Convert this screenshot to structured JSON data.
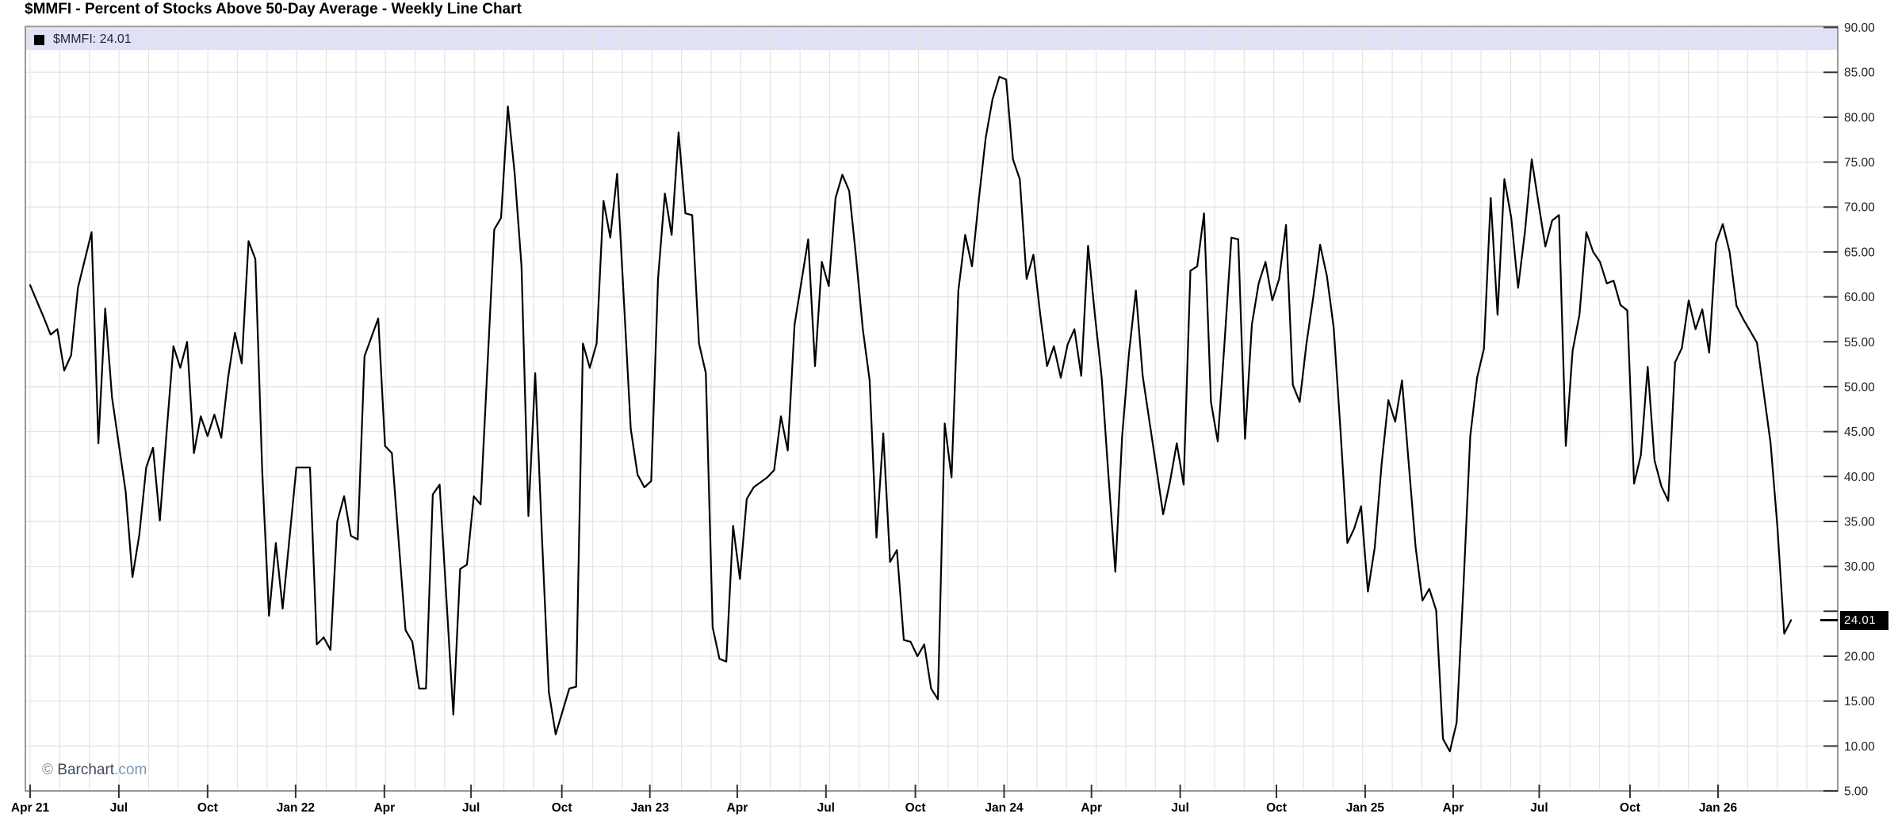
{
  "header": {
    "title": "$MMFI - Percent of Stocks Above 50-Day Average - Weekly Line Chart"
  },
  "legend": {
    "swatch_icon": "black-square-icon",
    "text": "$MMFI: 24.01",
    "symbol": "$MMFI",
    "value": "24.01"
  },
  "watermark": {
    "copyright": "© ",
    "name": "Barchart",
    "domain": ".com"
  },
  "y_axis": {
    "badge_label": "24.01",
    "hidden_tick_label": "25.00"
  },
  "colors": {
    "line": "#000000",
    "grid": "#e4e4e4",
    "border": "#999999",
    "tick": "#333333",
    "legend_band": "#e1e1f6",
    "badge_bg": "#000000",
    "badge_text": "#ffffff",
    "axis_label": "#222222",
    "x_label": "#000000"
  },
  "chart_data": {
    "type": "line",
    "title": "$MMFI - Percent of Stocks Above 50-Day Average - Weekly Line Chart",
    "series_name": "$MMFI",
    "frequency": "weekly",
    "date_range": "Apr 2021 - Mar 2026",
    "last_value": 24.01,
    "ylim": [
      5,
      90
    ],
    "grid": "horizontal every 5 units, vertical monthly",
    "legend_position": "top-left band",
    "y_ticks_labeled": [
      [
        90,
        "90.00"
      ],
      [
        85,
        "85.00"
      ],
      [
        80,
        "80.00"
      ],
      [
        75,
        "75.00"
      ],
      [
        70,
        "70.00"
      ],
      [
        65,
        "65.00"
      ],
      [
        60,
        "60.00"
      ],
      [
        55,
        "55.00"
      ],
      [
        50,
        "50.00"
      ],
      [
        45,
        "45.00"
      ],
      [
        40,
        "40.00"
      ],
      [
        35,
        "35.00"
      ],
      [
        30,
        "30.00"
      ],
      [
        20,
        "20.00"
      ],
      [
        15,
        "15.00"
      ],
      [
        10,
        "10.00"
      ],
      [
        5,
        "5.00"
      ]
    ],
    "y_ticks_all": [
      90,
      85,
      80,
      75,
      70,
      65,
      60,
      55,
      50,
      45,
      40,
      35,
      30,
      25,
      20,
      15,
      10,
      5
    ],
    "x_ticks": [
      {
        "label": "Apr 21",
        "week": 0
      },
      {
        "label": "Jul",
        "week": 13
      },
      {
        "label": "Oct",
        "week": 26
      },
      {
        "label": "Jan 22",
        "week": 38.9
      },
      {
        "label": "Apr",
        "week": 51.9
      },
      {
        "label": "Jul",
        "week": 64.6
      },
      {
        "label": "Oct",
        "week": 77.9
      },
      {
        "label": "Jan 23",
        "week": 90.8
      },
      {
        "label": "Apr",
        "week": 103.6
      },
      {
        "label": "Jul",
        "week": 116.6
      },
      {
        "label": "Oct",
        "week": 129.7
      },
      {
        "label": "Jan 24",
        "week": 142.7
      },
      {
        "label": "Apr",
        "week": 155.5
      },
      {
        "label": "Jul",
        "week": 168.5
      },
      {
        "label": "Oct",
        "week": 182.6
      },
      {
        "label": "Jan 25",
        "week": 195.6
      },
      {
        "label": "Apr",
        "week": 208.5
      },
      {
        "label": "Jul",
        "week": 221.1
      },
      {
        "label": "Oct",
        "week": 234.4
      },
      {
        "label": "Jan 26",
        "week": 247.3
      }
    ],
    "x_unit": "weeks since first data point (Apr 2021)",
    "points": [
      [
        0,
        61.3
      ],
      [
        2,
        57.7
      ],
      [
        3,
        55.8
      ],
      [
        4,
        56.4
      ],
      [
        5,
        51.8
      ],
      [
        6,
        53.5
      ],
      [
        7,
        61.0
      ],
      [
        9,
        67.2
      ],
      [
        10,
        43.7
      ],
      [
        11,
        58.7
      ],
      [
        12,
        48.8
      ],
      [
        14,
        38.3
      ],
      [
        15,
        28.8
      ],
      [
        16,
        33.5
      ],
      [
        17,
        41.0
      ],
      [
        18,
        43.2
      ],
      [
        19,
        35.1
      ],
      [
        20,
        45.0
      ],
      [
        21,
        54.5
      ],
      [
        22,
        52.1
      ],
      [
        23,
        55.0
      ],
      [
        24,
        42.6
      ],
      [
        25,
        46.7
      ],
      [
        26,
        44.5
      ],
      [
        27,
        46.9
      ],
      [
        28,
        44.3
      ],
      [
        29,
        51.0
      ],
      [
        30,
        56.0
      ],
      [
        31,
        52.6
      ],
      [
        32,
        66.2
      ],
      [
        33,
        64.2
      ],
      [
        34,
        40.7
      ],
      [
        35,
        24.5
      ],
      [
        36,
        32.6
      ],
      [
        37,
        25.3
      ],
      [
        39,
        41.0
      ],
      [
        41,
        41.0
      ],
      [
        42,
        21.3
      ],
      [
        43,
        22.1
      ],
      [
        44,
        20.7
      ],
      [
        45,
        35.0
      ],
      [
        46,
        37.8
      ],
      [
        47,
        33.4
      ],
      [
        48,
        33.0
      ],
      [
        49,
        53.4
      ],
      [
        51,
        57.6
      ],
      [
        52,
        43.4
      ],
      [
        53,
        42.6
      ],
      [
        55,
        22.9
      ],
      [
        56,
        21.6
      ],
      [
        57,
        16.4
      ],
      [
        58,
        16.4
      ],
      [
        59,
        38.0
      ],
      [
        60,
        39.1
      ],
      [
        62,
        13.5
      ],
      [
        63,
        29.7
      ],
      [
        64,
        30.2
      ],
      [
        65,
        37.8
      ],
      [
        66,
        36.9
      ],
      [
        68,
        67.5
      ],
      [
        69,
        68.8
      ],
      [
        70,
        81.2
      ],
      [
        71,
        73.7
      ],
      [
        72,
        63.4
      ],
      [
        73,
        35.6
      ],
      [
        74,
        51.5
      ],
      [
        75,
        33.0
      ],
      [
        76,
        16.0
      ],
      [
        77,
        11.3
      ],
      [
        79,
        16.4
      ],
      [
        80,
        16.6
      ],
      [
        81,
        54.8
      ],
      [
        82,
        52.1
      ],
      [
        83,
        54.8
      ],
      [
        84,
        70.7
      ],
      [
        85,
        66.6
      ],
      [
        86,
        73.7
      ],
      [
        88,
        45.3
      ],
      [
        89,
        40.2
      ],
      [
        90,
        38.8
      ],
      [
        91,
        39.5
      ],
      [
        92,
        62.0
      ],
      [
        93,
        71.5
      ],
      [
        94,
        66.9
      ],
      [
        95,
        78.3
      ],
      [
        96,
        69.3
      ],
      [
        97,
        69.1
      ],
      [
        98,
        54.8
      ],
      [
        99,
        51.5
      ],
      [
        100,
        23.2
      ],
      [
        101,
        19.7
      ],
      [
        102,
        19.4
      ],
      [
        103,
        34.5
      ],
      [
        104,
        28.6
      ],
      [
        105,
        37.5
      ],
      [
        106,
        38.8
      ],
      [
        108,
        39.9
      ],
      [
        109,
        40.7
      ],
      [
        110,
        46.7
      ],
      [
        111,
        42.9
      ],
      [
        112,
        56.9
      ],
      [
        114,
        66.4
      ],
      [
        115,
        52.3
      ],
      [
        116,
        63.9
      ],
      [
        117,
        61.2
      ],
      [
        118,
        71.0
      ],
      [
        119,
        73.6
      ],
      [
        120,
        71.8
      ],
      [
        121,
        64.5
      ],
      [
        122,
        56.4
      ],
      [
        123,
        50.7
      ],
      [
        124,
        33.2
      ],
      [
        125,
        44.8
      ],
      [
        126,
        30.5
      ],
      [
        127,
        31.8
      ],
      [
        128,
        21.8
      ],
      [
        129,
        21.6
      ],
      [
        130,
        20.0
      ],
      [
        131,
        21.3
      ],
      [
        132,
        16.4
      ],
      [
        133,
        15.2
      ],
      [
        134,
        45.9
      ],
      [
        135,
        39.9
      ],
      [
        136,
        60.7
      ],
      [
        137,
        66.9
      ],
      [
        138,
        63.4
      ],
      [
        139,
        70.9
      ],
      [
        140,
        77.7
      ],
      [
        141,
        82.0
      ],
      [
        142,
        84.5
      ],
      [
        143,
        84.2
      ],
      [
        144,
        75.3
      ],
      [
        145,
        73.1
      ],
      [
        146,
        62.0
      ],
      [
        147,
        64.7
      ],
      [
        148,
        58.0
      ],
      [
        149,
        52.3
      ],
      [
        150,
        54.5
      ],
      [
        151,
        51.0
      ],
      [
        152,
        54.7
      ],
      [
        153,
        56.4
      ],
      [
        154,
        51.2
      ],
      [
        155,
        65.7
      ],
      [
        156,
        58.0
      ],
      [
        157,
        51.0
      ],
      [
        158,
        40.0
      ],
      [
        159,
        29.4
      ],
      [
        160,
        44.5
      ],
      [
        161,
        53.7
      ],
      [
        162,
        60.7
      ],
      [
        163,
        51.2
      ],
      [
        165,
        41.0
      ],
      [
        166,
        35.8
      ],
      [
        167,
        39.4
      ],
      [
        168,
        43.7
      ],
      [
        169,
        39.1
      ],
      [
        170,
        62.9
      ],
      [
        171,
        63.4
      ],
      [
        172,
        69.3
      ],
      [
        173,
        48.3
      ],
      [
        174,
        43.9
      ],
      [
        175,
        55.0
      ],
      [
        176,
        66.6
      ],
      [
        177,
        66.4
      ],
      [
        178,
        44.2
      ],
      [
        179,
        56.9
      ],
      [
        180,
        61.5
      ],
      [
        181,
        63.9
      ],
      [
        182,
        59.6
      ],
      [
        183,
        62.0
      ],
      [
        184,
        68.0
      ],
      [
        185,
        50.2
      ],
      [
        186,
        48.3
      ],
      [
        187,
        54.8
      ],
      [
        188,
        60.0
      ],
      [
        189,
        65.8
      ],
      [
        190,
        62.3
      ],
      [
        191,
        56.5
      ],
      [
        192,
        45.0
      ],
      [
        193,
        32.6
      ],
      [
        194,
        34.2
      ],
      [
        195,
        36.7
      ],
      [
        196,
        27.2
      ],
      [
        197,
        32.1
      ],
      [
        198,
        41.3
      ],
      [
        199,
        48.5
      ],
      [
        200,
        46.1
      ],
      [
        201,
        50.7
      ],
      [
        202,
        41.3
      ],
      [
        203,
        32.1
      ],
      [
        204,
        26.2
      ],
      [
        205,
        27.5
      ],
      [
        206,
        25.1
      ],
      [
        207,
        10.8
      ],
      [
        208,
        9.4
      ],
      [
        209,
        12.6
      ],
      [
        210,
        27.8
      ],
      [
        211,
        44.5
      ],
      [
        212,
        51.0
      ],
      [
        213,
        54.2
      ],
      [
        214,
        71.0
      ],
      [
        215,
        58.0
      ],
      [
        216,
        73.1
      ],
      [
        217,
        68.8
      ],
      [
        218,
        61.0
      ],
      [
        219,
        67.2
      ],
      [
        220,
        75.3
      ],
      [
        221,
        70.4
      ],
      [
        222,
        65.6
      ],
      [
        223,
        68.5
      ],
      [
        224,
        69.1
      ],
      [
        225,
        43.4
      ],
      [
        226,
        54.0
      ],
      [
        227,
        58.0
      ],
      [
        228,
        67.2
      ],
      [
        229,
        65.0
      ],
      [
        230,
        63.9
      ],
      [
        231,
        61.5
      ],
      [
        232,
        61.8
      ],
      [
        233,
        59.1
      ],
      [
        234,
        58.5
      ],
      [
        235,
        39.2
      ],
      [
        236,
        42.4
      ],
      [
        237,
        52.2
      ],
      [
        238,
        41.8
      ],
      [
        239,
        38.9
      ],
      [
        240,
        37.3
      ],
      [
        241,
        52.7
      ],
      [
        242,
        54.3
      ],
      [
        243,
        59.6
      ],
      [
        244,
        56.4
      ],
      [
        245,
        58.6
      ],
      [
        246,
        53.8
      ],
      [
        247,
        66.0
      ],
      [
        248,
        68.1
      ],
      [
        249,
        65.0
      ],
      [
        250,
        59.0
      ],
      [
        251,
        57.5
      ],
      [
        252,
        56.2
      ],
      [
        253,
        54.9
      ],
      [
        255,
        43.7
      ],
      [
        256,
        34.4
      ],
      [
        257,
        22.5
      ],
      [
        258,
        24.01
      ]
    ]
  }
}
